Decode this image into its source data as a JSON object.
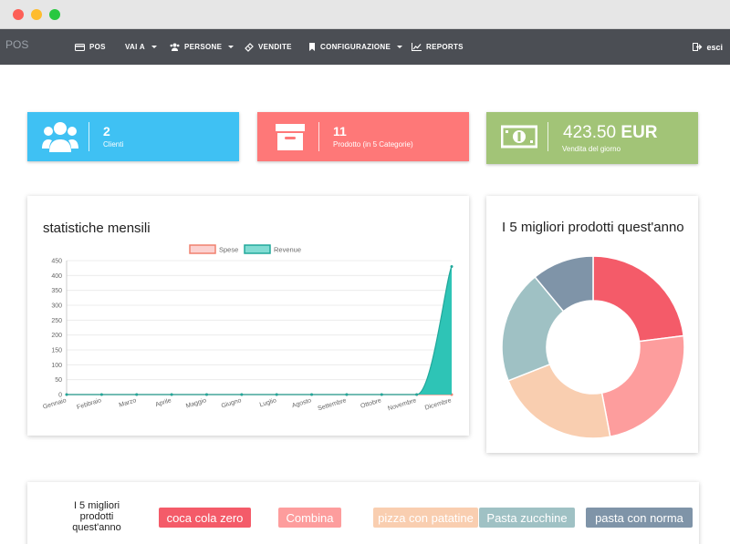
{
  "brand": "POS",
  "nav": {
    "items": [
      {
        "label": "POS",
        "icon": "credit-card-icon"
      },
      {
        "label": "VAI A",
        "icon": null,
        "dropdown": true
      },
      {
        "label": "PERSONE",
        "icon": "users-icon",
        "dropdown": true
      },
      {
        "label": "VENDITE",
        "icon": "ticket-icon"
      },
      {
        "label": "CONFIGURAZIONE",
        "icon": "bookmark-icon",
        "dropdown": true
      },
      {
        "label": "REPORTS",
        "icon": "line-chart-icon"
      }
    ],
    "logout": {
      "label": "esci",
      "icon": "sign-out-icon"
    }
  },
  "stats": {
    "clients": {
      "value": "2",
      "label": "Clienti",
      "color": "#3fc1f3",
      "icon": "users-icon"
    },
    "products": {
      "value": "11",
      "label": "Prodotto (in 5 Categorie)",
      "color": "#fe7878",
      "icon": "archive-icon"
    },
    "sales": {
      "amount": "423.50",
      "currency": "EUR",
      "label": "Vendita del giorno",
      "color": "#a2c477",
      "icon": "money-icon"
    }
  },
  "monthly_panel": {
    "title": "statistiche mensili"
  },
  "top_panel": {
    "title": "I 5 migliori prodotti quest'anno"
  },
  "chart_data": [
    {
      "type": "area",
      "title": "statistiche mensili",
      "categories": [
        "Gennaio",
        "Febbraio",
        "Marzo",
        "Aprile",
        "Maggio",
        "Giugno",
        "Luglio",
        "Agosto",
        "Settembre",
        "Ottobre",
        "Novembre",
        "Dicembre"
      ],
      "series": [
        {
          "name": "Spese",
          "values": [
            0,
            0,
            0,
            0,
            0,
            0,
            0,
            0,
            0,
            0,
            0,
            0
          ],
          "color": "#f9b3b0",
          "border": "#f0816f"
        },
        {
          "name": "Revenue",
          "values": [
            0,
            0,
            0,
            0,
            0,
            0,
            0,
            0,
            0,
            0,
            0,
            430
          ],
          "color": "#2ec4b6",
          "border": "#21a89b"
        }
      ],
      "ylim": [
        0,
        450
      ],
      "yticks": [
        0,
        50,
        100,
        150,
        200,
        250,
        300,
        350,
        400,
        450
      ],
      "grid": true,
      "legend": "top"
    },
    {
      "type": "pie",
      "title": "I 5 migliori prodotti quest'anno",
      "categories": [
        "coca cola zero",
        "Combina",
        "pizza con patatine",
        "Pasta zucchine",
        "pasta con norma"
      ],
      "values": [
        23,
        24,
        22,
        20,
        11
      ],
      "colors": [
        "#f45b69",
        "#fd9d9d",
        "#f9ceb0",
        "#9fc1c4",
        "#7f94a8"
      ]
    }
  ],
  "bottom_panel": {
    "title": "I 5 migliori prodotti quest'anno",
    "pills": [
      "coca cola zero",
      "Combina",
      "pizza con patatine",
      "Pasta zucchine",
      "pasta con norma"
    ]
  }
}
